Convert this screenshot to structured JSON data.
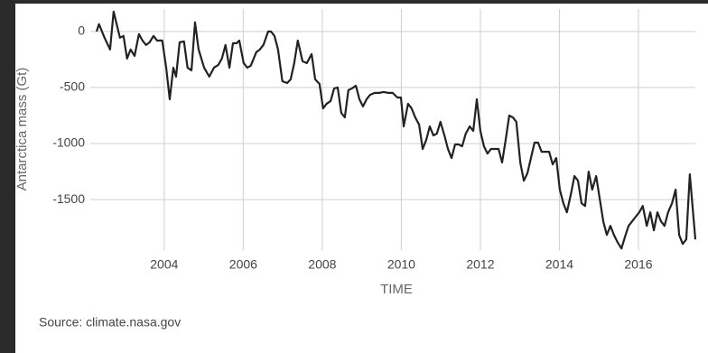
{
  "chart_data": {
    "type": "line",
    "y_label": "Antarctica mass (Gt)",
    "x_label": "TIME",
    "x": [
      2002.29,
      2002.35,
      2002.49,
      2002.63,
      2002.72,
      2002.88,
      2002.97,
      2003.06,
      2003.15,
      2003.25,
      2003.36,
      2003.45,
      2003.54,
      2003.63,
      2003.73,
      2003.82,
      2003.95,
      2004.05,
      2004.14,
      2004.23,
      2004.3,
      2004.39,
      2004.5,
      2004.59,
      2004.69,
      2004.78,
      2004.87,
      2005.01,
      2005.14,
      2005.26,
      2005.37,
      2005.46,
      2005.55,
      2005.65,
      2005.74,
      2005.83,
      2005.9,
      2006.01,
      2006.1,
      2006.19,
      2006.33,
      2006.42,
      2006.51,
      2006.63,
      2006.7,
      2006.79,
      2006.88,
      2006.99,
      2007.11,
      2007.2,
      2007.29,
      2007.38,
      2007.5,
      2007.61,
      2007.73,
      2007.82,
      2007.93,
      2008.02,
      2008.11,
      2008.21,
      2008.3,
      2008.39,
      2008.48,
      2008.57,
      2008.66,
      2008.75,
      2008.85,
      2008.94,
      2009.03,
      2009.12,
      2009.21,
      2009.33,
      2009.44,
      2009.55,
      2009.67,
      2009.78,
      2009.9,
      2009.99,
      2010.06,
      2010.17,
      2010.26,
      2010.35,
      2010.45,
      2010.54,
      2010.63,
      2010.72,
      2010.81,
      2010.9,
      2010.99,
      2011.09,
      2011.18,
      2011.27,
      2011.36,
      2011.45,
      2011.54,
      2011.63,
      2011.73,
      2011.82,
      2011.91,
      2012.0,
      2012.09,
      2012.18,
      2012.27,
      2012.37,
      2012.46,
      2012.55,
      2012.64,
      2012.73,
      2012.82,
      2012.91,
      2013.01,
      2013.1,
      2013.19,
      2013.28,
      2013.37,
      2013.46,
      2013.55,
      2013.65,
      2013.74,
      2013.83,
      2013.92,
      2014.01,
      2014.1,
      2014.19,
      2014.29,
      2014.38,
      2014.47,
      2014.56,
      2014.65,
      2014.74,
      2014.83,
      2014.93,
      2015.02,
      2015.11,
      2015.2,
      2015.29,
      2015.38,
      2015.47,
      2015.57,
      2015.66,
      2015.75,
      2015.84,
      2015.93,
      2016.02,
      2016.11,
      2016.21,
      2016.3,
      2016.39,
      2016.48,
      2016.57,
      2016.66,
      2016.75,
      2016.85,
      2016.94,
      2017.03,
      2017.12,
      2017.21,
      2017.3,
      2017.44
    ],
    "values": [
      0,
      65,
      -56,
      -161,
      177,
      -56,
      -40,
      -242,
      -161,
      -218,
      -24,
      -81,
      -121,
      -97,
      -40,
      -81,
      -81,
      -323,
      -605,
      -323,
      -403,
      -97,
      -89,
      -323,
      -347,
      81,
      -161,
      -323,
      -403,
      -323,
      -298,
      -242,
      -121,
      -323,
      -105,
      -105,
      -81,
      -282,
      -323,
      -306,
      -185,
      -161,
      -121,
      0,
      0,
      -40,
      -161,
      -444,
      -460,
      -427,
      -282,
      -81,
      -266,
      -282,
      -202,
      -427,
      -468,
      -686,
      -645,
      -621,
      -508,
      -500,
      -726,
      -766,
      -524,
      -508,
      -484,
      -605,
      -669,
      -605,
      -565,
      -548,
      -548,
      -540,
      -548,
      -548,
      -589,
      -589,
      -847,
      -645,
      -686,
      -766,
      -831,
      -1048,
      -968,
      -847,
      -927,
      -911,
      -806,
      -927,
      -1048,
      -1129,
      -1008,
      -1008,
      -1024,
      -911,
      -847,
      -887,
      -605,
      -887,
      -1024,
      -1089,
      -1048,
      -1048,
      -1048,
      -1169,
      -968,
      -750,
      -766,
      -806,
      -1169,
      -1331,
      -1266,
      -1129,
      -992,
      -992,
      -1073,
      -1073,
      -1073,
      -1186,
      -1129,
      -1411,
      -1532,
      -1613,
      -1452,
      -1290,
      -1331,
      -1532,
      -1557,
      -1250,
      -1411,
      -1290,
      -1492,
      -1694,
      -1815,
      -1734,
      -1815,
      -1879,
      -1936,
      -1831,
      -1734,
      -1694,
      -1653,
      -1613,
      -1557,
      -1734,
      -1613,
      -1774,
      -1613,
      -1694,
      -1734,
      -1613,
      -1532,
      -1411,
      -1815,
      -1895,
      -1855,
      -1274,
      -1855
    ],
    "color": "#222222",
    "xlim": [
      2002.13,
      2017.44
    ],
    "xticks": [
      2004,
      2006,
      2008,
      2010,
      2012,
      2014,
      2016
    ],
    "ylim": [
      -1950,
      200
    ],
    "yticks": [
      0,
      -500,
      -1000,
      -1500
    ],
    "grid": true
  },
  "source": "Source: climate.nasa.gov"
}
